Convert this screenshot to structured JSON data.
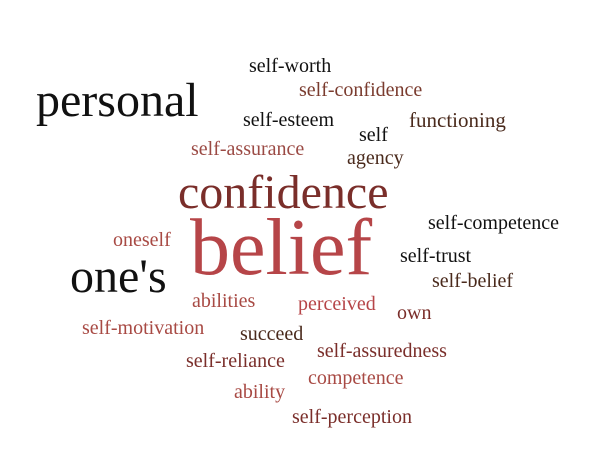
{
  "words": {
    "personal": {
      "text": "personal",
      "color": "#111111"
    },
    "self_worth": {
      "text": "self-worth",
      "color": "#111111"
    },
    "self_confidence": {
      "text": "self-confidence",
      "color": "#7a3b2e"
    },
    "self_esteem": {
      "text": "self-esteem",
      "color": "#111111"
    },
    "functioning": {
      "text": "functioning",
      "color": "#4a2a1c"
    },
    "self": {
      "text": "self",
      "color": "#111111"
    },
    "self_assurance": {
      "text": "self-assurance",
      "color": "#9b4a44"
    },
    "agency": {
      "text": "agency",
      "color": "#4a2a1c"
    },
    "confidence": {
      "text": "confidence",
      "color": "#7a2e2a"
    },
    "self_competence": {
      "text": "self-competence",
      "color": "#111111"
    },
    "oneself": {
      "text": "oneself",
      "color": "#a84a44"
    },
    "belief": {
      "text": "belief",
      "color": "#b64548"
    },
    "self_trust": {
      "text": "self-trust",
      "color": "#111111"
    },
    "ones": {
      "text": "one's",
      "color": "#111111"
    },
    "self_belief": {
      "text": "self-belief",
      "color": "#4a2a1c"
    },
    "abilities": {
      "text": "abilities",
      "color": "#a84a44"
    },
    "perceived": {
      "text": "perceived",
      "color": "#b64548"
    },
    "own": {
      "text": "own",
      "color": "#7a2e2a"
    },
    "self_motivation": {
      "text": "self-motivation",
      "color": "#a84a44"
    },
    "succeed": {
      "text": "succeed",
      "color": "#4a2a1c"
    },
    "self_assuredness": {
      "text": "self-assuredness",
      "color": "#7a2e2a"
    },
    "self_reliance": {
      "text": "self-reliance",
      "color": "#7a2e2a"
    },
    "competence": {
      "text": "competence",
      "color": "#a84a44"
    },
    "ability": {
      "text": "ability",
      "color": "#a84a44"
    },
    "self_perception": {
      "text": "self-perception",
      "color": "#7a2e2a"
    }
  }
}
